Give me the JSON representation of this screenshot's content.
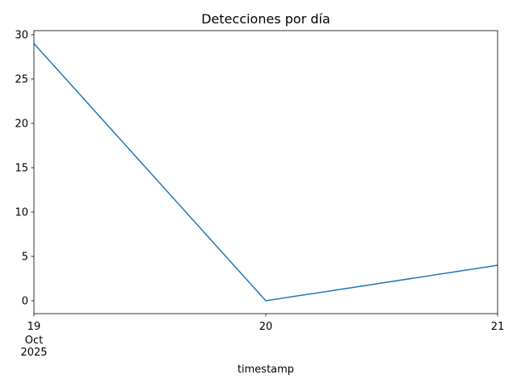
{
  "chart_data": {
    "type": "line",
    "title": "Detecciones por día",
    "xlabel": "timestamp",
    "ylabel": "",
    "x": [
      "2025-10-19",
      "2025-10-20",
      "2025-10-21"
    ],
    "x_tick_labels": [
      "19",
      "20",
      "21"
    ],
    "x_tick_sublabels": [
      "Oct",
      "2025"
    ],
    "y_ticks": [
      0,
      5,
      10,
      15,
      20,
      25,
      30
    ],
    "y_tick_labels": [
      "0",
      "5",
      "10",
      "15",
      "20",
      "25",
      "30"
    ],
    "ylim": [
      -1.45,
      30.45
    ],
    "grid": false,
    "series": [
      {
        "values": [
          29,
          0,
          4
        ],
        "color": "#1f77b4"
      }
    ]
  }
}
